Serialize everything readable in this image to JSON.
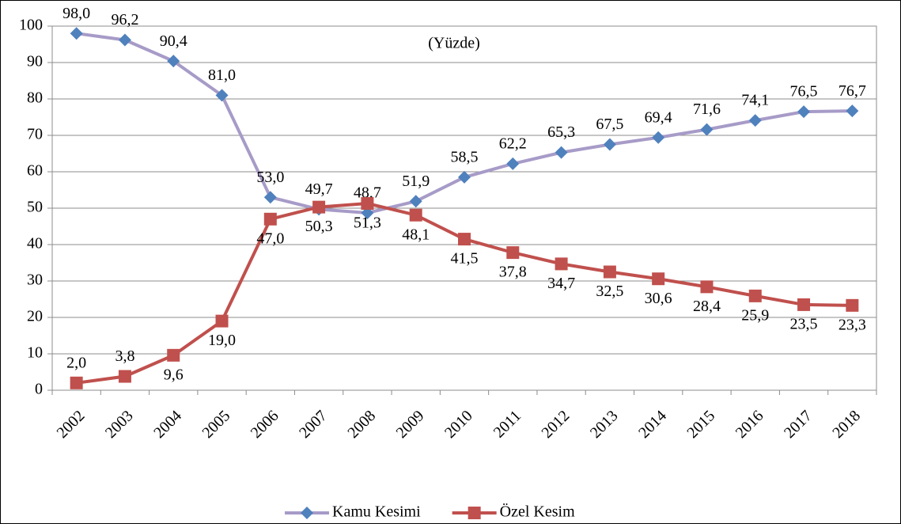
{
  "chart_data": {
    "type": "line",
    "annotation": "(Yüzde)",
    "categories": [
      "2002",
      "2003",
      "2004",
      "2005",
      "2006",
      "2007",
      "2008",
      "2009",
      "2010",
      "2011",
      "2012",
      "2013",
      "2014",
      "2015",
      "2016",
      "2017",
      "2018"
    ],
    "series": [
      {
        "name": "Kamu Kesimi",
        "color": "#a79bc8",
        "marker_color": "#4f81bd",
        "marker": "diamond",
        "values": [
          98.0,
          96.2,
          90.4,
          81.0,
          53.0,
          49.7,
          48.7,
          51.9,
          58.5,
          62.2,
          65.3,
          67.5,
          69.4,
          71.6,
          74.1,
          76.5,
          76.7
        ],
        "value_labels": [
          "98,0",
          "96,2",
          "90,4",
          "81,0",
          "53,0",
          "49,7",
          "48,7",
          "51,9",
          "58,5",
          "62,2",
          "65,3",
          "67,5",
          "69,4",
          "71,6",
          "74,1",
          "76,5",
          "76,7"
        ]
      },
      {
        "name": "Özel Kesim",
        "color": "#c0504d",
        "marker_color": "#c0504d",
        "marker": "square",
        "values": [
          2.0,
          3.8,
          9.6,
          19.0,
          47.0,
          50.3,
          51.3,
          48.1,
          41.5,
          37.8,
          34.7,
          32.5,
          30.6,
          28.4,
          25.9,
          23.5,
          23.3
        ],
        "value_labels": [
          "2,0",
          "3,8",
          "9,6",
          "19,0",
          "47,0",
          "50,3",
          "51,3",
          "48,1",
          "41,5",
          "37,8",
          "34,7",
          "32,5",
          "30,6",
          "28,4",
          "25,9",
          "23,5",
          "23,3"
        ]
      }
    ],
    "ylim": [
      0,
      100
    ],
    "yticks": [
      0,
      10,
      20,
      30,
      40,
      50,
      60,
      70,
      80,
      90,
      100
    ],
    "grid": true,
    "legend": "bottom"
  }
}
